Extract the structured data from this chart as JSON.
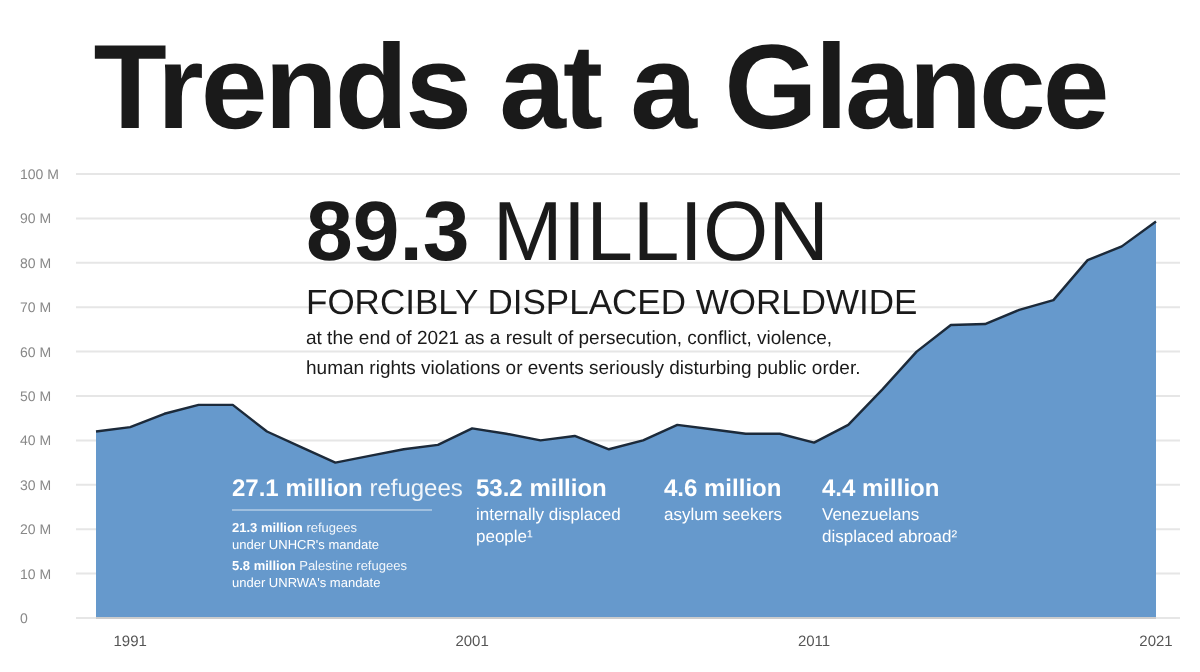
{
  "chart_data": {
    "type": "area",
    "title": "Trends at a Glance",
    "x": [
      1990,
      1991,
      1992,
      1993,
      1994,
      1995,
      1996,
      1997,
      1998,
      1999,
      2000,
      2001,
      2002,
      2003,
      2004,
      2005,
      2006,
      2007,
      2008,
      2009,
      2010,
      2011,
      2012,
      2013,
      2014,
      2015,
      2016,
      2017,
      2018,
      2019,
      2020,
      2021
    ],
    "series": [
      {
        "color": "#6699cc",
        "values": [
          42,
          43,
          46,
          48,
          48,
          42,
          38.5,
          35,
          36.5,
          38,
          39,
          42.7,
          41.5,
          40,
          41,
          38,
          40,
          43.5,
          42.5,
          41.5,
          41.5,
          39.5,
          43.5,
          51.5,
          60,
          66,
          66.2,
          69.4,
          71.6,
          80.6,
          83.7,
          89.3
        ]
      }
    ],
    "xlim": [
      1990,
      2021
    ],
    "xticks": [
      1991,
      2001,
      2011,
      2021
    ],
    "ylim": [
      0,
      100
    ],
    "yticks": [
      0,
      {
        "value": 10,
        "label": "10 M"
      },
      {
        "value": 20,
        "label": "20 M"
      },
      {
        "value": 30,
        "label": "30 M"
      },
      {
        "value": 40,
        "label": "40 M"
      },
      {
        "value": 50,
        "label": "50 M"
      },
      {
        "value": 60,
        "label": "60 M"
      },
      {
        "value": 70,
        "label": "70 M"
      },
      {
        "value": 80,
        "label": "80 M"
      },
      {
        "value": 90,
        "label": "90 M"
      },
      {
        "value": 100,
        "label": "100 M"
      }
    ],
    "grid": "y",
    "annotations": [
      "89.3 MILLION",
      "FORCIBLY DISPLACED WORLDWIDE",
      "at the end of 2021 as a result of persecution, conflict, violence,",
      "human rights violations or events seriously disturbing public order.",
      "27.1 million refugees",
      "21.3 million refugees\nunder UNHCR's mandate",
      "5.8 million Palestine refugees\nunder UNRWA's mandate",
      "53.2 million",
      "internally displaced\npeople¹",
      "4.6 million",
      "asylum seekers",
      "4.4 million",
      "Venezuelans\ndisplaced abroad²"
    ]
  }
}
